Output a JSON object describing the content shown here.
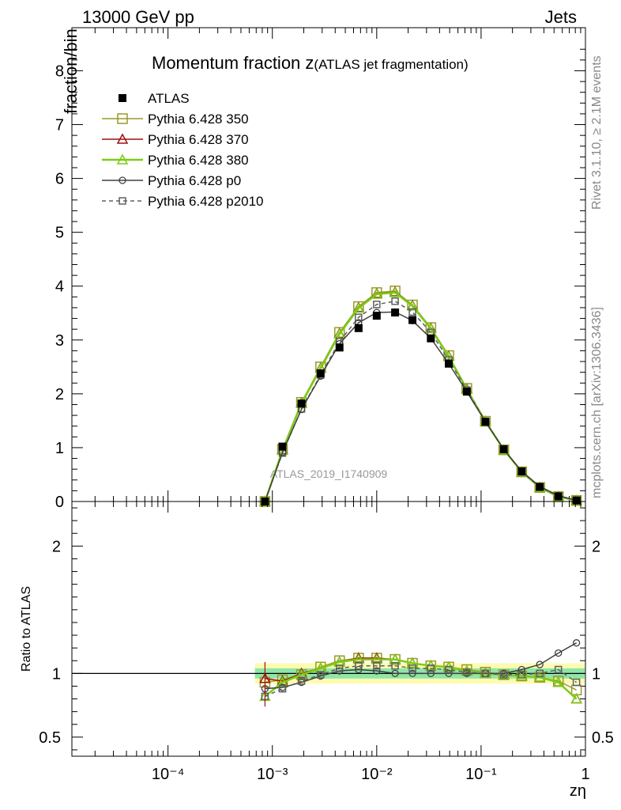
{
  "header": {
    "left": "13000 GeV pp",
    "right": "Jets"
  },
  "side_labels": {
    "top": "Rivet 3.1.10, ≥ 2.1M events",
    "bottom": "mcplots.cern.ch [arXiv:1306.3436]"
  },
  "chart_data": [
    {
      "type": "line",
      "title_main": "Momentum fraction z",
      "title_sub": "(ATLAS jet fragmentation)",
      "ylabel": "fraction/bin",
      "xlabel": "zη",
      "watermark": "ATLAS_2019_I1740909",
      "x_scale": "log",
      "xlim": [
        1.2e-05,
        1
      ],
      "ylim": [
        0,
        8.8
      ],
      "y_ticks": [
        "0",
        "1",
        "2",
        "3",
        "4",
        "5",
        "6",
        "7",
        "8"
      ],
      "x_ticks": [
        "10⁻⁴",
        "10⁻³",
        "10⁻²",
        "10⁻¹",
        "1"
      ],
      "legend_position": "top-left",
      "x": [
        0.00085,
        0.00125,
        0.0019,
        0.0029,
        0.0044,
        0.0067,
        0.01,
        0.015,
        0.022,
        0.033,
        0.049,
        0.073,
        0.11,
        0.165,
        0.245,
        0.365,
        0.55,
        0.82
      ],
      "series": [
        {
          "name": "ATLAS",
          "color": "#000000",
          "marker": "filled-square",
          "values": [
            0.0,
            1.02,
            1.82,
            2.38,
            2.86,
            3.22,
            3.45,
            3.51,
            3.37,
            3.03,
            2.56,
            2.04,
            1.48,
            0.97,
            0.56,
            0.27,
            0.095,
            0.02
          ]
        },
        {
          "name": "Pythia 6.428 350",
          "color": "#9a9a2a",
          "marker": "open-square",
          "values": [
            0.0,
            0.97,
            1.84,
            2.5,
            3.14,
            3.62,
            3.88,
            3.91,
            3.65,
            3.23,
            2.71,
            2.1,
            1.49,
            0.96,
            0.55,
            0.26,
            0.09,
            0.02
          ]
        },
        {
          "name": "Pythia 6.428 370",
          "color": "#a01010",
          "marker": "open-triangle",
          "values": [
            0.0,
            0.96,
            1.83,
            2.48,
            3.12,
            3.6,
            3.86,
            3.89,
            3.64,
            3.22,
            2.7,
            2.09,
            1.49,
            0.96,
            0.55,
            0.26,
            0.09,
            0.02
          ]
        },
        {
          "name": "Pythia 6.428 380",
          "color": "#7ccc14",
          "marker": "open-triangle",
          "values": [
            0.0,
            0.95,
            1.82,
            2.47,
            3.11,
            3.59,
            3.85,
            3.88,
            3.63,
            3.21,
            2.69,
            2.08,
            1.49,
            0.96,
            0.55,
            0.26,
            0.09,
            0.02
          ]
        },
        {
          "name": "Pythia 6.428 p0",
          "color": "#404040",
          "marker": "open-circle",
          "values": [
            0.0,
            0.91,
            1.71,
            2.33,
            2.93,
            3.32,
            3.51,
            3.52,
            3.36,
            3.03,
            2.56,
            2.04,
            1.48,
            0.97,
            0.56,
            0.28,
            0.11,
            0.02
          ]
        },
        {
          "name": "Pythia 6.428 p2010",
          "color": "#606060",
          "marker": "open-square-dashed",
          "values": [
            0.0,
            0.9,
            1.72,
            2.35,
            2.97,
            3.42,
            3.66,
            3.72,
            3.52,
            3.14,
            2.63,
            2.07,
            1.49,
            0.97,
            0.55,
            0.27,
            0.1,
            0.02
          ]
        }
      ]
    },
    {
      "type": "line",
      "ylabel": "Ratio to ATLAS",
      "x_scale": "log",
      "xlim": [
        1.2e-05,
        1
      ],
      "ylim": [
        0.35,
        2.35
      ],
      "y_ticks": [
        "0.5",
        "1",
        "2"
      ],
      "reference_line": 1,
      "band_yellow": [
        0.92,
        1.08
      ],
      "band_green": [
        0.96,
        1.04
      ],
      "x": [
        0.00085,
        0.00125,
        0.0019,
        0.0029,
        0.0044,
        0.0067,
        0.01,
        0.015,
        0.022,
        0.033,
        0.049,
        0.073,
        0.11,
        0.165,
        0.245,
        0.365,
        0.55,
        0.82
      ],
      "series": [
        {
          "name": "Pythia 6.428 350",
          "values": [
            0.93,
            0.95,
            0.99,
            1.05,
            1.1,
            1.12,
            1.12,
            1.11,
            1.08,
            1.06,
            1.05,
            1.03,
            1.01,
            0.99,
            0.98,
            0.97,
            0.94,
            0.87
          ]
        },
        {
          "name": "Pythia 6.428 370",
          "values": [
            0.96,
            0.94,
            1.0,
            1.04,
            1.09,
            1.12,
            1.12,
            1.11,
            1.08,
            1.06,
            1.05,
            1.02,
            1.0,
            0.99,
            0.98,
            0.97,
            0.93,
            0.8
          ]
        },
        {
          "name": "Pythia 6.428 380",
          "values": [
            0.82,
            0.93,
            0.99,
            1.04,
            1.09,
            1.11,
            1.11,
            1.11,
            1.08,
            1.06,
            1.05,
            1.02,
            1.0,
            0.99,
            0.98,
            0.97,
            0.93,
            0.8
          ]
        },
        {
          "name": "Pythia 6.428 p0",
          "values": [
            0.88,
            0.89,
            0.93,
            0.98,
            1.02,
            1.03,
            1.02,
            1.0,
            1.0,
            1.0,
            1.0,
            1.0,
            1.0,
            1.0,
            1.03,
            1.07,
            1.16,
            1.24
          ]
        },
        {
          "name": "Pythia 6.428 p2010",
          "values": [
            0.82,
            0.88,
            0.94,
            0.99,
            1.04,
            1.06,
            1.06,
            1.06,
            1.04,
            1.04,
            1.03,
            1.01,
            1.0,
            0.99,
            0.99,
            1.0,
            1.03,
            0.93
          ]
        }
      ]
    }
  ]
}
